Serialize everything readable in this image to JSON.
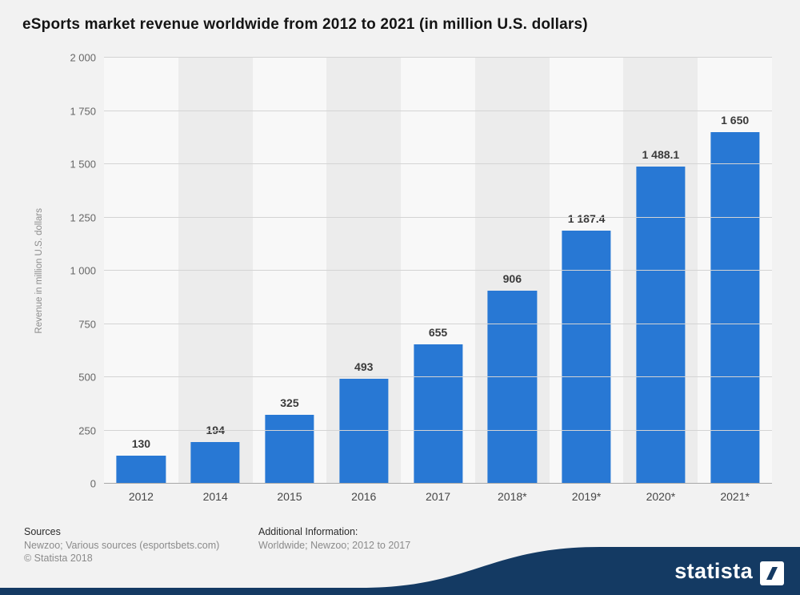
{
  "title": "eSports market revenue worldwide from 2012 to 2021 (in million U.S. dollars)",
  "chart_data": {
    "type": "bar",
    "title": "eSports market revenue worldwide from 2012 to 2021 (in million U.S. dollars)",
    "xlabel": "",
    "ylabel": "Revenue in million U.S. dollars",
    "ylim": [
      0,
      2000
    ],
    "grid": true,
    "legend": "none",
    "bar_color": "#2878d4",
    "categories": [
      "2012",
      "2014",
      "2015",
      "2016",
      "2017",
      "2018*",
      "2019*",
      "2020*",
      "2021*"
    ],
    "values": [
      130,
      194,
      325,
      493,
      655,
      906,
      1187.4,
      1488.1,
      1650
    ],
    "value_labels": [
      "130",
      "194",
      "325",
      "493",
      "655",
      "906",
      "1 187.4",
      "1 488.1",
      "1 650"
    ],
    "yticks": [
      {
        "value": 0,
        "label": "0"
      },
      {
        "value": 250,
        "label": "250"
      },
      {
        "value": 500,
        "label": "500"
      },
      {
        "value": 750,
        "label": "750"
      },
      {
        "value": 1000,
        "label": "1 000"
      },
      {
        "value": 1250,
        "label": "1 250"
      },
      {
        "value": 1500,
        "label": "1 500"
      },
      {
        "value": 1750,
        "label": "1 750"
      },
      {
        "value": 2000,
        "label": "2 000"
      }
    ]
  },
  "footer": {
    "sources_heading": "Sources",
    "sources_line": "Newzoo; Various sources (esportsbets.com)",
    "copyright": "© Statista 2018",
    "additional_heading": "Additional Information:",
    "additional_line": "Worldwide; Newzoo; 2012 to 2017"
  },
  "branding": {
    "logo_text": "statista",
    "brand_color": "#143a63"
  }
}
